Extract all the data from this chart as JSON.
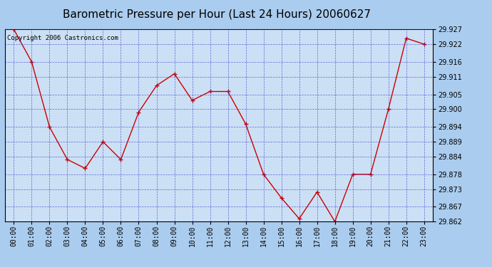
{
  "title": "Barometric Pressure per Hour (Last 24 Hours) 20060627",
  "copyright_text": "Copyright 2006 Castronics.com",
  "hours": [
    0,
    1,
    2,
    3,
    4,
    5,
    6,
    7,
    8,
    9,
    10,
    11,
    12,
    13,
    14,
    15,
    16,
    17,
    18,
    19,
    20,
    21,
    22,
    23
  ],
  "x_labels": [
    "00:00",
    "01:00",
    "02:00",
    "03:00",
    "04:00",
    "05:00",
    "06:00",
    "07:00",
    "08:00",
    "09:00",
    "10:00",
    "11:00",
    "12:00",
    "13:00",
    "14:00",
    "15:00",
    "16:00",
    "17:00",
    "18:00",
    "19:00",
    "20:00",
    "21:00",
    "22:00",
    "23:00"
  ],
  "values": [
    29.927,
    29.916,
    29.894,
    29.883,
    29.88,
    29.889,
    29.883,
    29.899,
    29.908,
    29.912,
    29.903,
    29.906,
    29.906,
    29.895,
    29.878,
    29.87,
    29.863,
    29.872,
    29.862,
    29.878,
    29.878,
    29.9,
    29.924,
    29.922
  ],
  "ylim_min": 29.862,
  "ylim_max": 29.927,
  "yticks": [
    29.862,
    29.867,
    29.873,
    29.878,
    29.884,
    29.889,
    29.894,
    29.9,
    29.905,
    29.911,
    29.916,
    29.922,
    29.927
  ],
  "line_color": "#cc0000",
  "marker_color": "#cc0000",
  "bg_color": "#aaccee",
  "plot_bg_color": "#cce0f5",
  "grid_color": "#3333cc",
  "title_color": "#000000",
  "copyright_color": "#000000",
  "border_color": "#000000",
  "title_fontsize": 11,
  "tick_fontsize": 7,
  "copyright_fontsize": 6.5
}
